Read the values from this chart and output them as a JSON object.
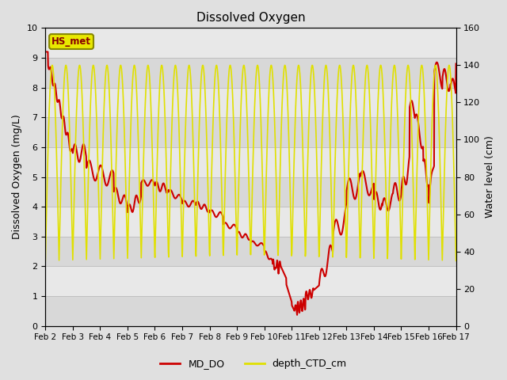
{
  "title": "Dissolved Oxygen",
  "ylabel_left": "Dissolved Oxygen (mg/L)",
  "ylabel_right": "Water level (cm)",
  "ylim_left": [
    0.0,
    10.0
  ],
  "ylim_right": [
    0,
    160
  ],
  "yticks_left": [
    0.0,
    1.0,
    2.0,
    3.0,
    4.0,
    5.0,
    6.0,
    7.0,
    8.0,
    9.0,
    10.0
  ],
  "yticks_right": [
    0,
    20,
    40,
    60,
    80,
    100,
    120,
    140,
    160
  ],
  "xtick_labels": [
    "Feb 2",
    "Feb 3",
    "Feb 4",
    "Feb 5",
    "Feb 6",
    "Feb 7",
    "Feb 8",
    "Feb 9",
    "Feb 10",
    "Feb 11",
    "Feb 12",
    "Feb 13",
    "Feb 14",
    "Feb 15",
    "Feb 16",
    "Feb 17"
  ],
  "legend_labels": [
    "MD_DO",
    "depth_CTD_cm"
  ],
  "line_colors": [
    "#cc0000",
    "#e0e000"
  ],
  "annotation_text": "HS_met",
  "annotation_facecolor": "#e8e800",
  "annotation_edgecolor": "#888800",
  "annotation_textcolor": "#880000",
  "bg_color": "#e0e0e0",
  "plot_bg_color": "#f0f0f0",
  "band_color_dark": "#d8d8d8",
  "band_color_light": "#e8e8e8",
  "grid_color": "#c8c8c8",
  "title_fontsize": 11,
  "label_fontsize": 9,
  "tick_fontsize": 8
}
